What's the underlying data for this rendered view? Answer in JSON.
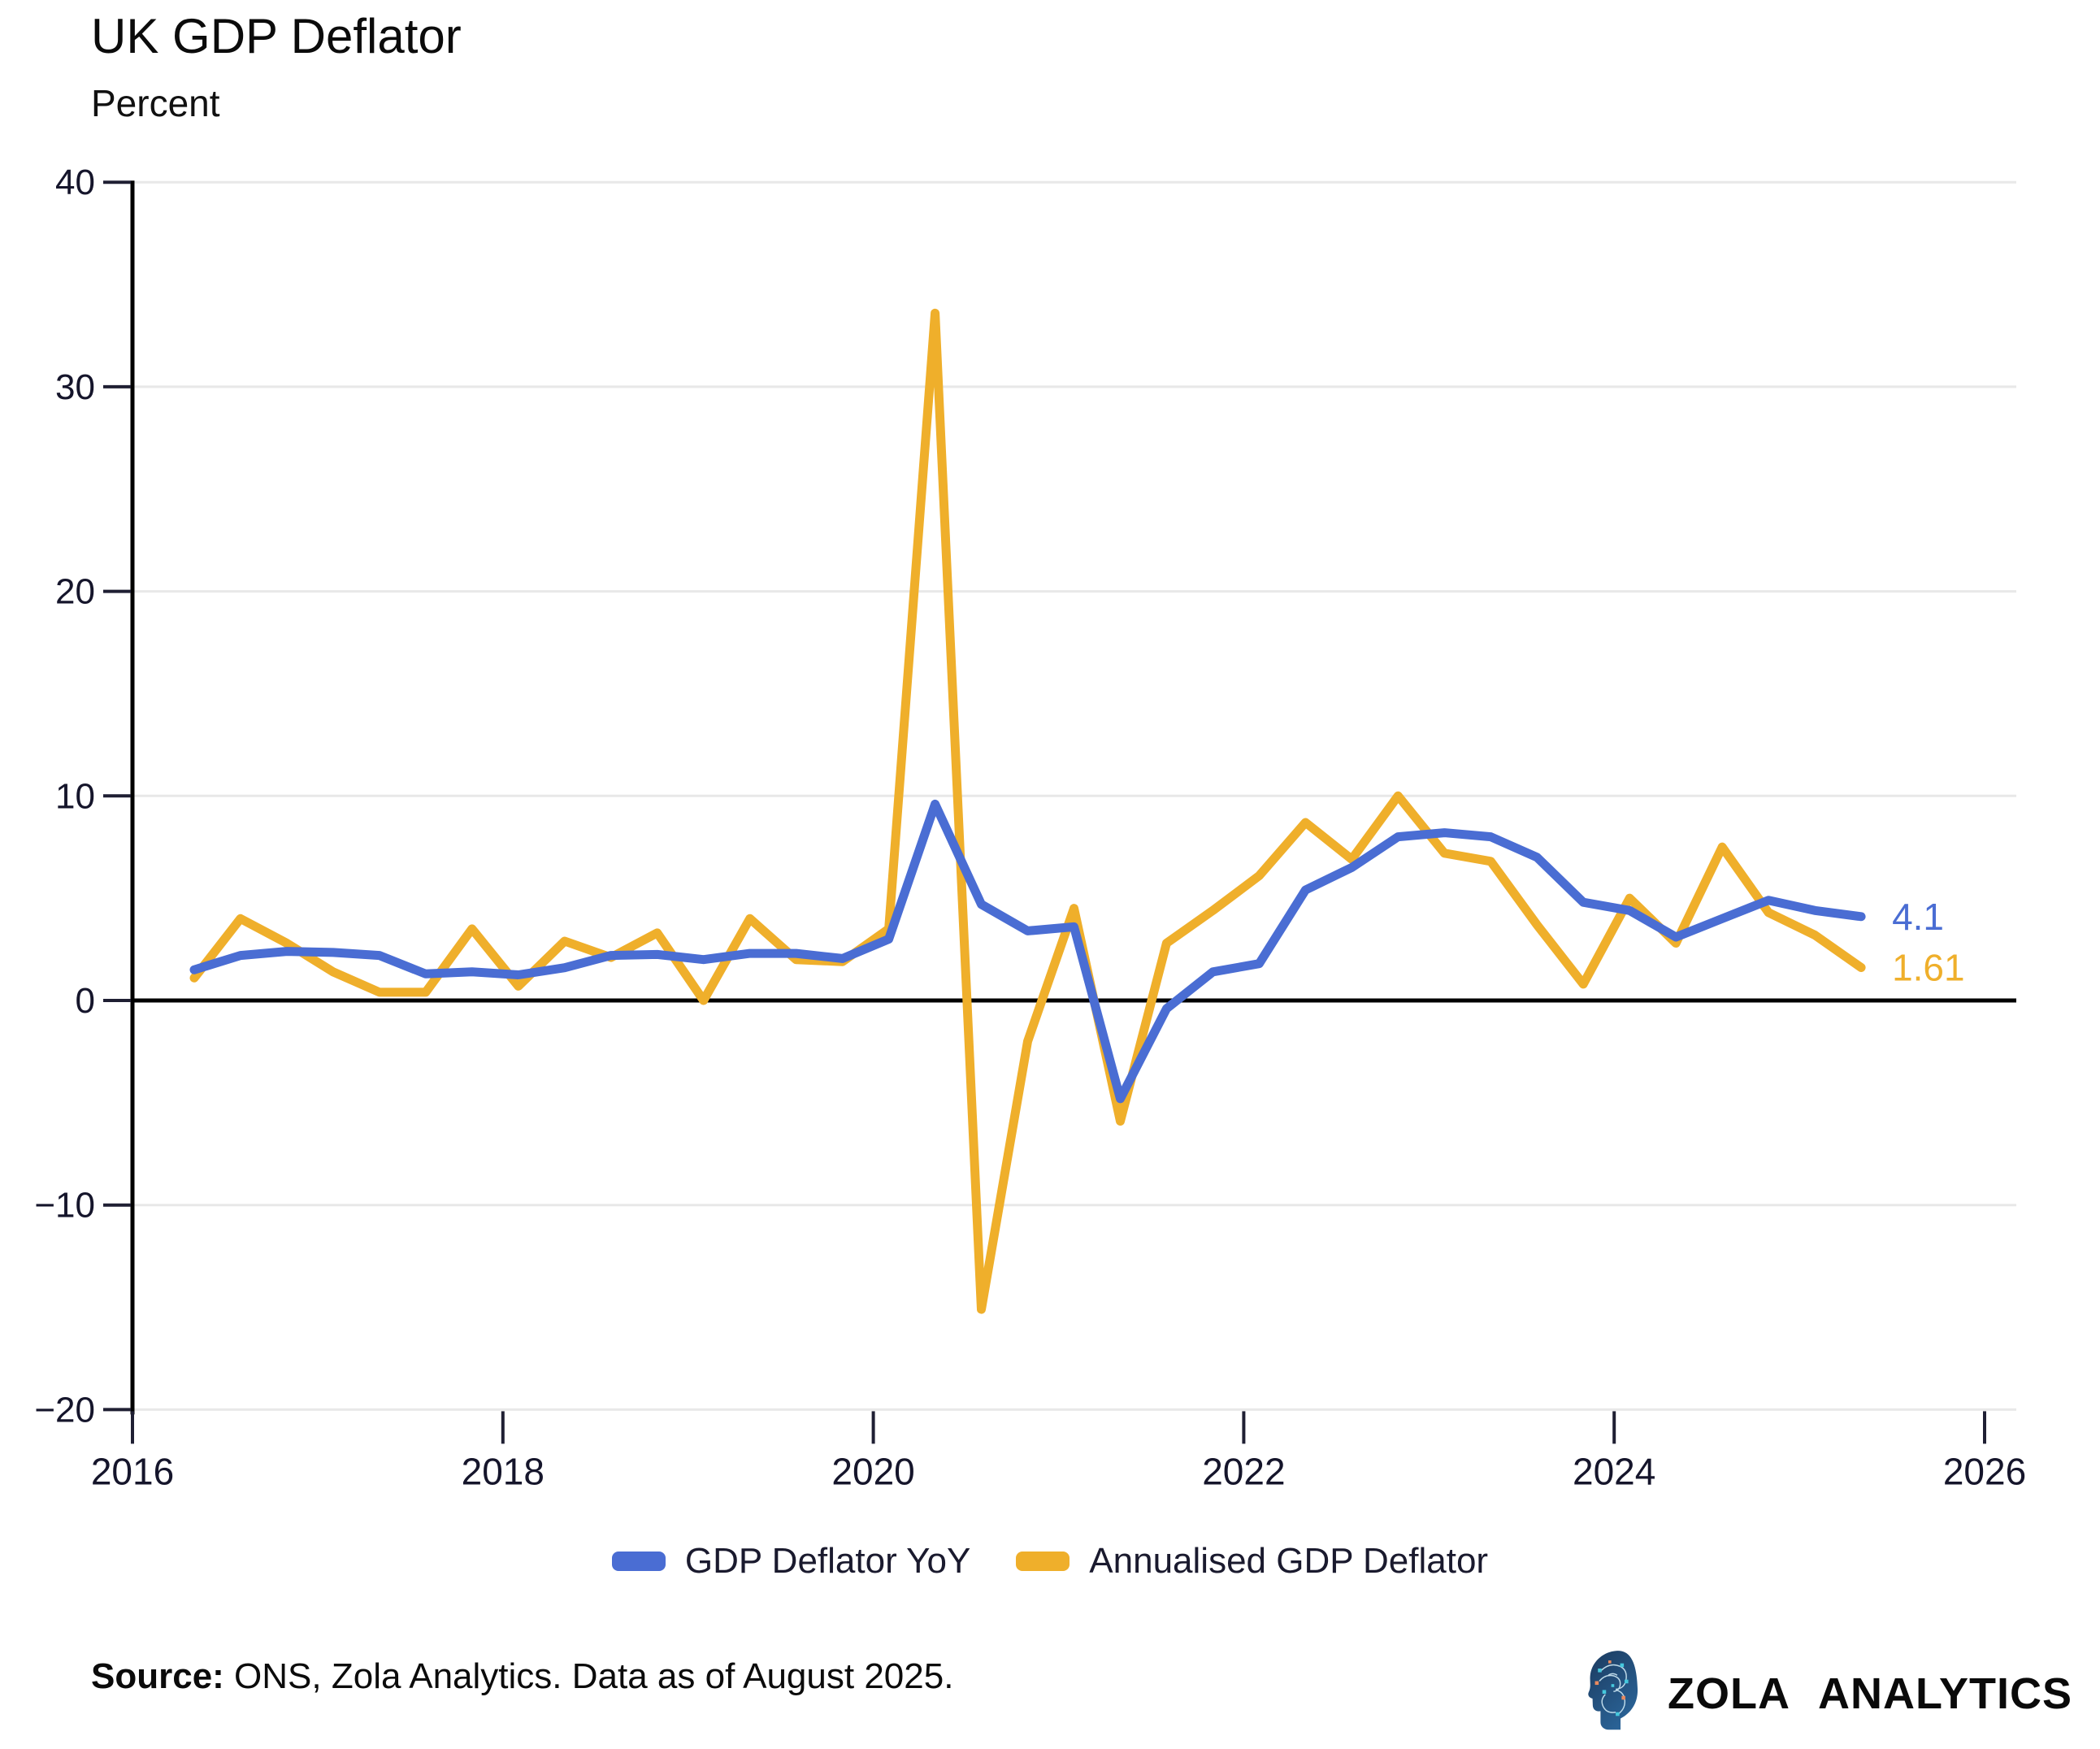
{
  "title": "UK GDP Deflator",
  "subtitle": "Percent",
  "source": {
    "label": "Source:",
    "text": " ONS, Zola Analytics. Data as of August 2025."
  },
  "branding": {
    "name": "ZOLA ANALYTICS",
    "logo_icon": "circuit-head-icon",
    "logo_navy": "#1b3a5e",
    "logo_teal": "#45c8dd",
    "logo_orange": "#e98a5f"
  },
  "chart_data": {
    "type": "line",
    "title": "UK GDP Deflator",
    "ylabel": "Percent",
    "xlabel": "",
    "ylim": [
      -20,
      40
    ],
    "xlim": [
      2016,
      2026.2
    ],
    "grid": "horizontal",
    "zero_line": true,
    "legend_position": "bottom",
    "yticks": [
      {
        "v": 40,
        "label": "40"
      },
      {
        "v": 30,
        "label": "30"
      },
      {
        "v": 20,
        "label": "20"
      },
      {
        "v": 10,
        "label": "10"
      },
      {
        "v": 0,
        "label": "0"
      },
      {
        "v": -10,
        "label": "−10"
      },
      {
        "v": -20,
        "label": "−20"
      }
    ],
    "xticks": [
      {
        "v": 2016,
        "label": "2016"
      },
      {
        "v": 2018,
        "label": "2018"
      },
      {
        "v": 2020,
        "label": "2020"
      },
      {
        "v": 2022,
        "label": "2022"
      },
      {
        "v": 2024,
        "label": "2024"
      },
      {
        "v": 2026,
        "label": "2026"
      }
    ],
    "categories": [
      "2016Q2",
      "2016Q3",
      "2016Q4",
      "2017Q1",
      "2017Q2",
      "2017Q3",
      "2017Q4",
      "2018Q1",
      "2018Q2",
      "2018Q3",
      "2018Q4",
      "2019Q1",
      "2019Q2",
      "2019Q3",
      "2019Q4",
      "2020Q1",
      "2020Q2",
      "2020Q3",
      "2020Q4",
      "2021Q1",
      "2021Q2",
      "2021Q3",
      "2021Q4",
      "2022Q1",
      "2022Q2",
      "2022Q3",
      "2022Q4",
      "2023Q1",
      "2023Q2",
      "2023Q3",
      "2023Q4",
      "2024Q1",
      "2024Q2",
      "2024Q3",
      "2024Q4",
      "2025Q1",
      "2025Q2"
    ],
    "series": [
      {
        "name": "GDP Deflator YoY",
        "color": "#4A6DD3",
        "end_label": "4.1",
        "values": [
          1.5,
          2.2,
          2.4,
          2.35,
          2.2,
          1.3,
          1.4,
          1.25,
          1.6,
          2.2,
          2.25,
          2.0,
          2.3,
          2.3,
          2.05,
          3.0,
          9.6,
          4.7,
          3.4,
          3.6,
          -4.8,
          -0.4,
          1.4,
          1.8,
          5.4,
          6.5,
          8.0,
          8.2,
          8.0,
          7.0,
          4.8,
          4.4,
          3.1,
          4.0,
          4.9,
          4.4,
          4.1
        ]
      },
      {
        "name": "Annualised GDP Deflator",
        "color": "#EFAF2B",
        "end_label": "1.61",
        "values": [
          1.1,
          4.0,
          2.8,
          1.4,
          0.4,
          0.4,
          3.5,
          0.7,
          2.9,
          2.1,
          3.3,
          0.0,
          4.0,
          2.0,
          1.9,
          3.5,
          33.6,
          -15.1,
          -2.0,
          4.5,
          -5.9,
          2.8,
          4.4,
          6.1,
          8.7,
          6.9,
          10.0,
          7.2,
          6.8,
          3.7,
          0.8,
          5.0,
          2.8,
          7.5,
          4.3,
          3.2,
          1.61
        ]
      }
    ],
    "styling": {
      "grid_color": "#e8e8e8",
      "zero_line_color": "#000000",
      "axis_color": "#000000",
      "tick_color": "#1f1f33",
      "label_color": "#15152b"
    }
  }
}
